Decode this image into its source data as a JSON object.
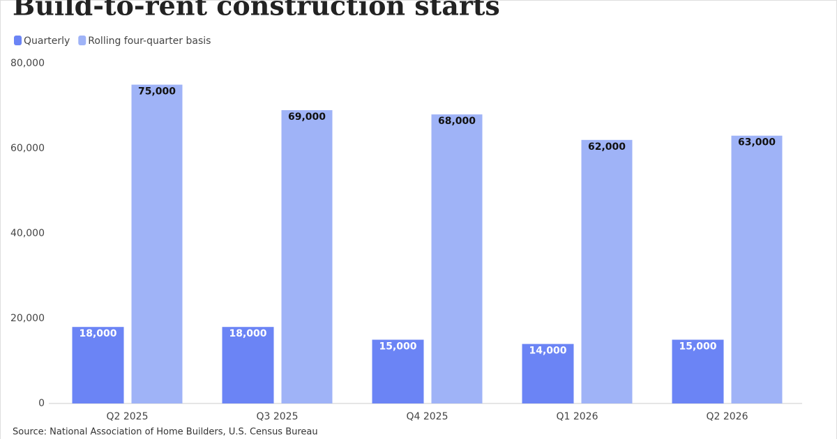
{
  "chart_data": {
    "type": "bar",
    "title": "Build-to-rent construction starts",
    "source": "Source: National Association of Home Builders, U.S. Census Bureau",
    "categories": [
      "Q2 2025",
      "Q3 2025",
      "Q4 2025",
      "Q1 2026",
      "Q2 2026"
    ],
    "series": [
      {
        "name": "Quarterly",
        "color": "#6b84f5",
        "values": [
          18000,
          18000,
          15000,
          14000,
          15000
        ],
        "value_labels": [
          "18,000",
          "18,000",
          "15,000",
          "14,000",
          "15,000"
        ]
      },
      {
        "name": "Rolling four-quarter basis",
        "color": "#9fb3f7",
        "values": [
          75000,
          69000,
          68000,
          62000,
          63000
        ],
        "value_labels": [
          "75,000",
          "69,000",
          "68,000",
          "62,000",
          "63,000"
        ]
      }
    ],
    "ylim": [
      0,
      80000
    ],
    "yticks": [
      0,
      {
        "value": 20000,
        "label": "20,000"
      },
      {
        "value": 40000,
        "label": "40,000"
      },
      {
        "value": 60000,
        "label": "60,000"
      },
      {
        "value": 80000,
        "label": "80,000"
      }
    ],
    "grid": false
  }
}
